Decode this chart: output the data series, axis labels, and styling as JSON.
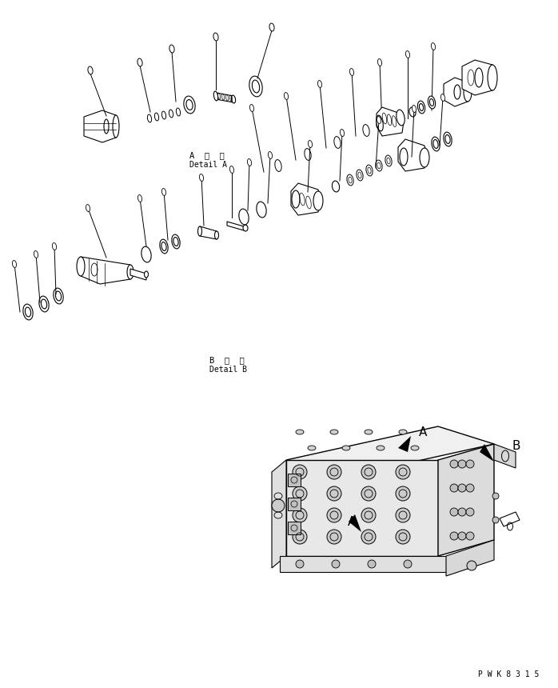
{
  "background_color": "#ffffff",
  "line_color": "#000000",
  "watermark": "P W K 8 3 1 5",
  "fig_width": 6.98,
  "fig_height": 8.6,
  "dpi": 100,
  "label_a_line1": "A  詳  細",
  "label_a_line2": "Detail A",
  "label_b_line1": "B  詳  細",
  "label_b_line2": "Detail B",
  "label_A": "A",
  "label_B": "B"
}
